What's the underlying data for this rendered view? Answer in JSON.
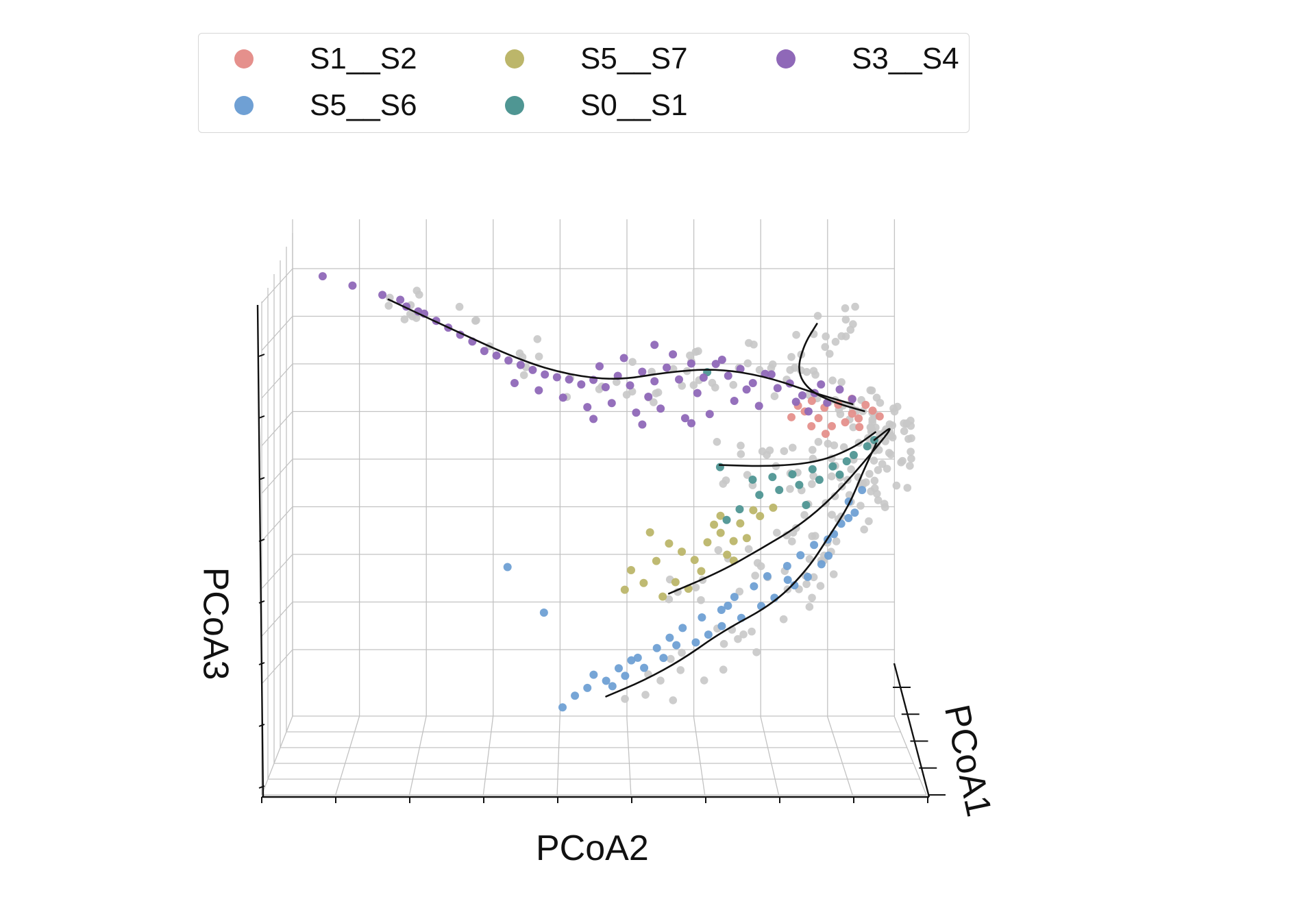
{
  "chart_data": {
    "type": "scatter",
    "subtype": "3d-scatter-with-trajectories",
    "title": "",
    "xlabel": "PCoA1",
    "ylabel": "PCoA2",
    "zlabel": "PCoA3",
    "grid": true,
    "legend_placement": "top",
    "legend_columns": 3,
    "background_points_color": "#c8c8c8",
    "series": [
      {
        "name": "S1__S2",
        "color": "#e5908c",
        "points": [
          [
            0.62,
            0.86,
            0.5
          ],
          [
            0.66,
            0.88,
            0.52
          ],
          [
            0.7,
            0.9,
            0.49
          ],
          [
            0.64,
            0.85,
            0.46
          ],
          [
            0.72,
            0.92,
            0.53
          ],
          [
            0.6,
            0.83,
            0.48
          ],
          [
            0.68,
            0.89,
            0.45
          ],
          [
            0.74,
            0.93,
            0.51
          ],
          [
            0.58,
            0.82,
            0.5
          ],
          [
            0.66,
            0.87,
            0.43
          ],
          [
            0.7,
            0.91,
            0.47
          ],
          [
            0.63,
            0.84,
            0.53
          ],
          [
            0.76,
            0.94,
            0.49
          ],
          [
            0.61,
            0.84,
            0.42
          ],
          [
            0.69,
            0.9,
            0.55
          ],
          [
            0.67,
            0.86,
            0.4
          ],
          [
            0.73,
            0.91,
            0.44
          ],
          [
            0.57,
            0.81,
            0.45
          ]
        ]
      },
      {
        "name": "S5__S6",
        "color": "#6fa0d4",
        "points": [
          [
            0.4,
            0.54,
            -0.66
          ],
          [
            0.38,
            0.52,
            -0.72
          ],
          [
            0.45,
            0.57,
            -0.6
          ],
          [
            0.5,
            0.62,
            -0.5
          ],
          [
            0.55,
            0.67,
            -0.4
          ],
          [
            0.6,
            0.72,
            -0.3
          ],
          [
            0.65,
            0.77,
            -0.2
          ],
          [
            0.7,
            0.82,
            -0.1
          ],
          [
            0.75,
            0.87,
            0.0
          ],
          [
            0.8,
            0.9,
            0.1
          ],
          [
            0.83,
            0.91,
            0.2
          ],
          [
            0.42,
            0.56,
            -0.62
          ],
          [
            0.48,
            0.6,
            -0.55
          ],
          [
            0.53,
            0.64,
            -0.45
          ],
          [
            0.58,
            0.7,
            -0.36
          ],
          [
            0.62,
            0.75,
            -0.25
          ],
          [
            0.68,
            0.8,
            -0.15
          ],
          [
            0.73,
            0.84,
            -0.05
          ],
          [
            0.78,
            0.88,
            0.05
          ],
          [
            0.82,
            0.89,
            0.15
          ],
          [
            0.36,
            0.5,
            -0.7
          ],
          [
            0.44,
            0.55,
            -0.68
          ],
          [
            0.52,
            0.61,
            -0.58
          ],
          [
            0.57,
            0.66,
            -0.5
          ],
          [
            0.63,
            0.73,
            -0.38
          ],
          [
            0.69,
            0.78,
            -0.28
          ],
          [
            0.74,
            0.83,
            -0.18
          ],
          [
            0.79,
            0.86,
            -0.08
          ],
          [
            0.46,
            0.58,
            -0.64
          ],
          [
            0.54,
            0.63,
            -0.52
          ],
          [
            0.61,
            0.7,
            -0.42
          ],
          [
            0.67,
            0.76,
            -0.32
          ],
          [
            0.72,
            0.81,
            -0.22
          ],
          [
            0.77,
            0.85,
            -0.12
          ],
          [
            0.3,
            0.45,
            -0.86
          ],
          [
            0.35,
            0.49,
            -0.76
          ],
          [
            0.39,
            0.53,
            -0.74
          ],
          [
            0.33,
            0.47,
            -0.8
          ],
          [
            0.2,
            0.36,
            -0.28
          ],
          [
            0.3,
            0.42,
            -0.45
          ],
          [
            0.56,
            0.68,
            -0.47
          ],
          [
            0.71,
            0.8,
            -0.2
          ],
          [
            0.76,
            0.86,
            -0.02
          ],
          [
            0.81,
            0.89,
            0.08
          ],
          [
            0.59,
            0.71,
            -0.34
          ]
        ]
      },
      {
        "name": "S5__S7",
        "color": "#bcb66a",
        "points": [
          [
            0.4,
            0.6,
            -0.2
          ],
          [
            0.44,
            0.64,
            -0.15
          ],
          [
            0.48,
            0.68,
            -0.1
          ],
          [
            0.52,
            0.7,
            -0.05
          ],
          [
            0.56,
            0.73,
            0.0
          ],
          [
            0.6,
            0.76,
            0.04
          ],
          [
            0.36,
            0.56,
            -0.25
          ],
          [
            0.42,
            0.62,
            -0.12
          ],
          [
            0.46,
            0.66,
            -0.18
          ],
          [
            0.5,
            0.69,
            -0.02
          ],
          [
            0.54,
            0.72,
            -0.08
          ],
          [
            0.58,
            0.75,
            0.06
          ],
          [
            0.38,
            0.58,
            -0.3
          ],
          [
            0.34,
            0.55,
            -0.34
          ],
          [
            0.44,
            0.63,
            -0.28
          ],
          [
            0.49,
            0.67,
            -0.22
          ],
          [
            0.53,
            0.71,
            -0.14
          ],
          [
            0.57,
            0.74,
            -0.06
          ],
          [
            0.62,
            0.78,
            0.08
          ],
          [
            0.41,
            0.61,
            -0.35
          ],
          [
            0.47,
            0.65,
            -0.3
          ],
          [
            0.39,
            0.59,
            -0.08
          ],
          [
            0.51,
            0.7,
            0.02
          ],
          [
            0.55,
            0.72,
            -0.16
          ]
        ]
      },
      {
        "name": "S0__S1",
        "color": "#4f9693",
        "points": [
          [
            0.58,
            0.78,
            0.2
          ],
          [
            0.62,
            0.81,
            0.22
          ],
          [
            0.66,
            0.84,
            0.25
          ],
          [
            0.7,
            0.87,
            0.27
          ],
          [
            0.74,
            0.89,
            0.3
          ],
          [
            0.6,
            0.79,
            0.15
          ],
          [
            0.64,
            0.82,
            0.18
          ],
          [
            0.68,
            0.85,
            0.21
          ],
          [
            0.72,
            0.88,
            0.24
          ],
          [
            0.56,
            0.76,
            0.12
          ],
          [
            0.52,
            0.73,
            0.05
          ],
          [
            0.5,
            0.71,
            0.0
          ],
          [
            0.76,
            0.9,
            0.33
          ],
          [
            0.78,
            0.92,
            0.37
          ],
          [
            0.54,
            0.75,
            0.18
          ],
          [
            0.48,
            0.7,
            0.22
          ],
          [
            0.46,
            0.68,
            0.62
          ],
          [
            0.8,
            0.93,
            0.4
          ],
          [
            0.66,
            0.83,
            0.1
          ]
        ]
      },
      {
        "name": "S3__S4",
        "color": "#8f68b8",
        "points": [
          [
            0.0,
            0.05,
            0.96
          ],
          [
            0.01,
            0.1,
            0.92
          ],
          [
            0.02,
            0.15,
            0.88
          ],
          [
            0.03,
            0.18,
            0.86
          ],
          [
            0.04,
            0.22,
            0.8
          ],
          [
            0.05,
            0.26,
            0.74
          ],
          [
            0.06,
            0.3,
            0.68
          ],
          [
            0.07,
            0.34,
            0.62
          ],
          [
            0.08,
            0.38,
            0.58
          ],
          [
            0.09,
            0.42,
            0.54
          ],
          [
            0.1,
            0.46,
            0.52
          ],
          [
            0.11,
            0.5,
            0.52
          ],
          [
            0.12,
            0.54,
            0.54
          ],
          [
            0.13,
            0.58,
            0.56
          ],
          [
            0.14,
            0.62,
            0.58
          ],
          [
            0.15,
            0.66,
            0.6
          ],
          [
            0.16,
            0.7,
            0.6
          ],
          [
            0.17,
            0.74,
            0.58
          ],
          [
            0.18,
            0.78,
            0.56
          ],
          [
            0.19,
            0.82,
            0.52
          ],
          [
            0.2,
            0.86,
            0.48
          ],
          [
            0.05,
            0.24,
            0.77
          ],
          [
            0.06,
            0.28,
            0.71
          ],
          [
            0.07,
            0.32,
            0.64
          ],
          [
            0.08,
            0.36,
            0.6
          ],
          [
            0.09,
            0.4,
            0.56
          ],
          [
            0.1,
            0.44,
            0.53
          ],
          [
            0.11,
            0.48,
            0.5
          ],
          [
            0.12,
            0.52,
            0.49
          ],
          [
            0.13,
            0.56,
            0.5
          ],
          [
            0.14,
            0.6,
            0.52
          ],
          [
            0.15,
            0.64,
            0.53
          ],
          [
            0.16,
            0.68,
            0.54
          ],
          [
            0.17,
            0.72,
            0.55
          ],
          [
            0.18,
            0.76,
            0.52
          ],
          [
            0.19,
            0.8,
            0.5
          ],
          [
            0.2,
            0.84,
            0.47
          ],
          [
            0.1,
            0.45,
            0.44
          ],
          [
            0.11,
            0.49,
            0.4
          ],
          [
            0.12,
            0.53,
            0.42
          ],
          [
            0.13,
            0.57,
            0.38
          ],
          [
            0.14,
            0.61,
            0.4
          ],
          [
            0.15,
            0.65,
            0.36
          ],
          [
            0.16,
            0.69,
            0.38
          ],
          [
            0.17,
            0.73,
            0.44
          ],
          [
            0.18,
            0.77,
            0.42
          ],
          [
            0.12,
            0.5,
            0.35
          ],
          [
            0.14,
            0.58,
            0.33
          ],
          [
            0.16,
            0.66,
            0.34
          ],
          [
            0.13,
            0.55,
            0.62
          ],
          [
            0.15,
            0.63,
            0.64
          ],
          [
            0.17,
            0.71,
            0.62
          ],
          [
            0.19,
            0.79,
            0.56
          ],
          [
            0.21,
            0.88,
            0.44
          ],
          [
            0.22,
            0.9,
            0.5
          ],
          [
            0.23,
            0.92,
            0.46
          ],
          [
            0.08,
            0.37,
            0.5
          ],
          [
            0.09,
            0.41,
            0.47
          ],
          [
            0.11,
            0.51,
            0.58
          ],
          [
            0.13,
            0.59,
            0.45
          ],
          [
            0.15,
            0.67,
            0.47
          ],
          [
            0.17,
            0.75,
            0.49
          ],
          [
            0.19,
            0.83,
            0.44
          ],
          [
            0.2,
            0.85,
            0.4
          ],
          [
            0.21,
            0.87,
            0.52
          ],
          [
            0.03,
            0.19,
            0.83
          ],
          [
            0.04,
            0.21,
            0.81
          ],
          [
            0.14,
            0.6,
            0.68
          ]
        ]
      }
    ],
    "trajectories": [
      {
        "points": [
          [
            0.02,
            0.16,
            0.86
          ],
          [
            0.05,
            0.26,
            0.74
          ],
          [
            0.08,
            0.38,
            0.6
          ],
          [
            0.1,
            0.46,
            0.54
          ],
          [
            0.12,
            0.54,
            0.52
          ],
          [
            0.14,
            0.62,
            0.56
          ],
          [
            0.16,
            0.7,
            0.58
          ],
          [
            0.18,
            0.78,
            0.55
          ],
          [
            0.2,
            0.86,
            0.48
          ],
          [
            0.24,
            0.92,
            0.44
          ]
        ]
      },
      {
        "points": [
          [
            0.3,
            0.86,
            0.8
          ],
          [
            0.26,
            0.84,
            0.7
          ],
          [
            0.24,
            0.83,
            0.58
          ],
          [
            0.26,
            0.85,
            0.5
          ],
          [
            0.32,
            0.89,
            0.46
          ],
          [
            0.44,
            0.93,
            0.45
          ]
        ]
      },
      {
        "points": [
          [
            0.44,
            0.7,
            0.22
          ],
          [
            0.56,
            0.78,
            0.24
          ],
          [
            0.66,
            0.85,
            0.28
          ],
          [
            0.76,
            0.9,
            0.36
          ],
          [
            0.84,
            0.93,
            0.44
          ]
        ]
      },
      {
        "points": [
          [
            0.4,
            0.62,
            -0.34
          ],
          [
            0.5,
            0.7,
            -0.22
          ],
          [
            0.6,
            0.76,
            -0.1
          ],
          [
            0.68,
            0.82,
            0.02
          ],
          [
            0.76,
            0.87,
            0.16
          ],
          [
            0.84,
            0.92,
            0.34
          ],
          [
            0.86,
            0.96,
            0.48
          ],
          [
            0.8,
            0.93,
            0.4
          ]
        ]
      },
      {
        "points": [
          [
            0.34,
            0.52,
            -0.8
          ],
          [
            0.44,
            0.58,
            -0.7
          ],
          [
            0.54,
            0.64,
            -0.58
          ],
          [
            0.62,
            0.7,
            -0.44
          ],
          [
            0.7,
            0.78,
            -0.3
          ],
          [
            0.76,
            0.83,
            -0.14
          ],
          [
            0.8,
            0.86,
            0.0
          ],
          [
            0.84,
            0.89,
            0.14
          ],
          [
            0.86,
            0.91,
            0.28
          ],
          [
            0.87,
            0.93,
            0.4
          ]
        ]
      }
    ]
  }
}
